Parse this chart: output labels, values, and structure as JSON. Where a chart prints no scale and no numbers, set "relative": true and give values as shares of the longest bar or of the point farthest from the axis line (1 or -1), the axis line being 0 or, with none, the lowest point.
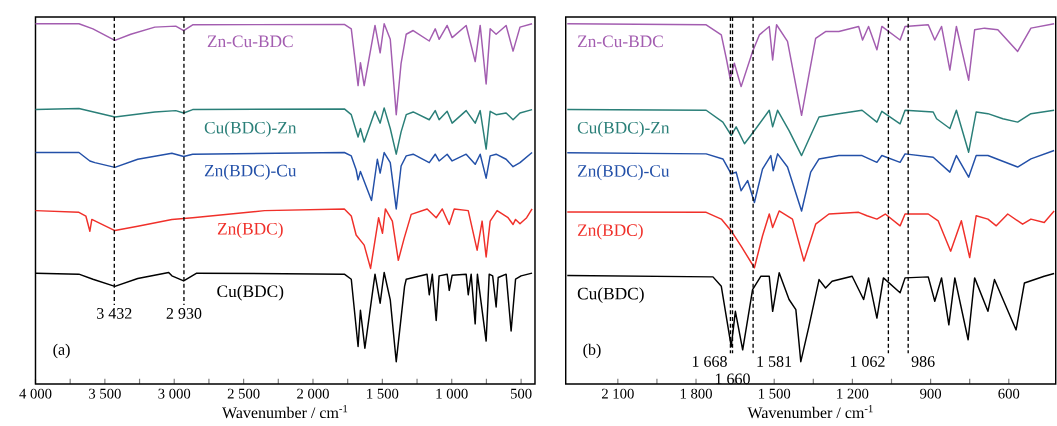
{
  "chart_data": [
    {
      "type": "line",
      "relative": true,
      "xlabel": "Wavenumber / cm$^{-1}$",
      "xlim": [
        4000,
        400
      ],
      "xticks": [
        {
          "value": 4000,
          "label": "4 000"
        },
        {
          "value": 3500,
          "label": "3 500"
        },
        {
          "value": 3000,
          "label": "3 000"
        },
        {
          "value": 2500,
          "label": "2 500"
        },
        {
          "value": 2000,
          "label": "2 000"
        },
        {
          "value": 1500,
          "label": "1 500"
        },
        {
          "value": 1000,
          "label": "1 000"
        },
        {
          "value": 500,
          "label": "500"
        }
      ],
      "series": [
        {
          "name": "Zn-Cu-BDC",
          "color": "#a35db0",
          "x": [
            4000,
            3687,
            3586,
            3428,
            3313,
            3140,
            2989,
            2932,
            2867,
            1774,
            1724,
            1675,
            1658,
            1631,
            1553,
            1516,
            1487,
            1443,
            1400,
            1365,
            1328,
            1278,
            1162,
            1119,
            1091,
            1033,
            997,
            896,
            831,
            795,
            752,
            723,
            680,
            608,
            558,
            508,
            421
          ],
          "values": [
            1.0,
            1.0,
            0.985,
            0.951,
            0.969,
            0.99,
            0.993,
            0.98,
            0.997,
            0.998,
            0.985,
            0.817,
            0.885,
            0.817,
            0.995,
            0.914,
            1.0,
            0.954,
            0.731,
            0.883,
            0.969,
            0.98,
            0.949,
            0.985,
            0.954,
            0.995,
            0.959,
            0.995,
            0.888,
            0.995,
            0.822,
            0.985,
            0.969,
            0.995,
            0.919,
            0.99,
            1.0
          ]
        },
        {
          "name": "Cu(BDC)-Zn",
          "color": "#2a7f78",
          "x": [
            4000,
            3687,
            3428,
            3140,
            2989,
            2932,
            2867,
            1774,
            1724,
            1675,
            1658,
            1631,
            1553,
            1516,
            1487,
            1443,
            1400,
            1365,
            1328,
            1278,
            1162,
            1119,
            1091,
            1033,
            997,
            896,
            831,
            795,
            752,
            723,
            680,
            608,
            558,
            508,
            421
          ],
          "values": [
            0.746,
            0.749,
            0.724,
            0.739,
            0.743,
            0.736,
            0.746,
            0.748,
            0.731,
            0.665,
            0.69,
            0.65,
            0.741,
            0.706,
            0.751,
            0.69,
            0.614,
            0.68,
            0.731,
            0.739,
            0.716,
            0.743,
            0.716,
            0.741,
            0.706,
            0.743,
            0.706,
            0.743,
            0.629,
            0.741,
            0.731,
            0.736,
            0.716,
            0.736,
            0.746
          ]
        },
        {
          "name": "Zn(BDC)-Cu",
          "color": "#2350a8",
          "x": [
            4000,
            3687,
            3608,
            3572,
            3428,
            3263,
            3017,
            2932,
            2867,
            1774,
            1724,
            1689,
            1675,
            1658,
            1578,
            1536,
            1516,
            1487,
            1443,
            1400,
            1365,
            1328,
            1278,
            1162,
            1119,
            1091,
            1033,
            997,
            896,
            831,
            795,
            752,
            723,
            680,
            608,
            558,
            508,
            421
          ],
          "values": [
            0.619,
            0.619,
            0.594,
            0.589,
            0.575,
            0.599,
            0.617,
            0.607,
            0.614,
            0.619,
            0.609,
            0.568,
            0.538,
            0.563,
            0.477,
            0.599,
            0.558,
            0.619,
            0.589,
            0.452,
            0.579,
            0.609,
            0.614,
            0.589,
            0.614,
            0.594,
            0.614,
            0.594,
            0.614,
            0.584,
            0.614,
            0.543,
            0.609,
            0.614,
            0.599,
            0.577,
            0.589,
            0.619
          ]
        },
        {
          "name": "Zn(BDC)",
          "color": "#f0302a",
          "x": [
            4000,
            3687,
            3637,
            3608,
            3594,
            3428,
            3263,
            3017,
            2867,
            2349,
            1774,
            1724,
            1689,
            1631,
            1585,
            1527,
            1499,
            1478,
            1428,
            1385,
            1343,
            1292,
            1177,
            1112,
            1068,
            1018,
            982,
            881,
            817,
            781,
            752,
            723,
            673,
            594,
            558,
            540,
            508,
            460,
            421
          ],
          "values": [
            0.447,
            0.442,
            0.431,
            0.386,
            0.421,
            0.388,
            0.401,
            0.421,
            0.426,
            0.447,
            0.452,
            0.431,
            0.375,
            0.345,
            0.276,
            0.426,
            0.38,
            0.452,
            0.416,
            0.3,
            0.365,
            0.436,
            0.452,
            0.426,
            0.452,
            0.406,
            0.452,
            0.447,
            0.33,
            0.416,
            0.31,
            0.416,
            0.447,
            0.426,
            0.406,
            0.421,
            0.408,
            0.426,
            0.452
          ]
        },
        {
          "name": "Cu(BDC)",
          "color": "#000000",
          "x": [
            4000,
            3687,
            3586,
            3428,
            3263,
            3040,
            3017,
            2932,
            2838,
            1774,
            1724,
            1675,
            1658,
            1626,
            1553,
            1516,
            1487,
            1443,
            1400,
            1340,
            1328,
            1278,
            1178,
            1162,
            1140,
            1112,
            1091,
            1033,
            1018,
            997,
            896,
            881,
            860,
            831,
            815,
            752,
            730,
            705,
            680,
            665,
            608,
            572,
            540,
            500,
            421
          ],
          "values": [
            0.262,
            0.259,
            0.244,
            0.223,
            0.246,
            0.264,
            0.254,
            0.239,
            0.262,
            0.259,
            0.244,
            0.045,
            0.152,
            0.04,
            0.259,
            0.173,
            0.264,
            0.183,
            0,
            0.223,
            0.244,
            0.249,
            0.259,
            0.198,
            0.259,
            0.122,
            0.254,
            0.259,
            0.211,
            0.256,
            0.259,
            0.198,
            0.259,
            0.112,
            0.259,
            0.061,
            0.259,
            0.254,
            0.162,
            0.249,
            0.259,
            0.091,
            0.244,
            0.254,
            0.262
          ]
        }
      ],
      "ref_lines": [
        {
          "axis": "x",
          "value": 3432,
          "label": "3 432",
          "line_style": "dashed"
        },
        {
          "axis": "x",
          "value": 2930,
          "label": "2 930",
          "line_style": "dashed"
        }
      ],
      "annotations": [
        "(a)"
      ]
    },
    {
      "type": "line",
      "relative": true,
      "xlabel": "Wavenumber / cm$^{-1}$",
      "xlim": [
        2300,
        420
      ],
      "xticks": [
        {
          "value": 2100,
          "label": "2 100"
        },
        {
          "value": 1800,
          "label": "1 800"
        },
        {
          "value": 1500,
          "label": "1 500"
        },
        {
          "value": 1200,
          "label": "1 200"
        },
        {
          "value": 900,
          "label": "900"
        },
        {
          "value": 600,
          "label": "600"
        }
      ],
      "series": [
        {
          "name": "Zn-Cu-BDC",
          "color": "#a35db0",
          "x": [
            2294,
            1761,
            1703,
            1684,
            1669,
            1653,
            1627,
            1583,
            1557,
            1519,
            1506,
            1491,
            1449,
            1395,
            1367,
            1341,
            1303,
            1252,
            1176,
            1161,
            1138,
            1106,
            1087,
            1017,
            998,
            909,
            884,
            858,
            826,
            801,
            754,
            731,
            693,
            642,
            566,
            515,
            426
          ],
          "values": [
            1.0,
            0.997,
            0.967,
            0.898,
            0.838,
            0.883,
            0.814,
            0.918,
            0.967,
            0.992,
            0.893,
            0.997,
            0.948,
            0.729,
            0.848,
            0.957,
            0.977,
            0.977,
            0.992,
            0.952,
            0.992,
            0.923,
            0.992,
            0.952,
            0.992,
            0.997,
            0.952,
            0.992,
            0.863,
            0.992,
            0.833,
            0.982,
            0.987,
            0.982,
            0.918,
            0.987,
            1.0
          ]
        },
        {
          "name": "Cu(BDC)-Zn",
          "color": "#2a7f78",
          "x": [
            2294,
            1761,
            1697,
            1665,
            1646,
            1614,
            1570,
            1519,
            1506,
            1487,
            1443,
            1395,
            1360,
            1328,
            1252,
            1163,
            1106,
            1087,
            1017,
            998,
            890,
            877,
            826,
            801,
            754,
            725,
            680,
            623,
            566,
            515,
            426
          ],
          "values": [
            0.746,
            0.744,
            0.709,
            0.67,
            0.695,
            0.645,
            0.69,
            0.744,
            0.695,
            0.744,
            0.684,
            0.61,
            0.67,
            0.724,
            0.734,
            0.744,
            0.709,
            0.741,
            0.704,
            0.744,
            0.739,
            0.719,
            0.69,
            0.744,
            0.62,
            0.739,
            0.734,
            0.719,
            0.709,
            0.734,
            0.744
          ]
        },
        {
          "name": "Zn(BDC)-Cu",
          "color": "#2350a8",
          "x": [
            2294,
            1761,
            1697,
            1665,
            1646,
            1627,
            1602,
            1576,
            1545,
            1513,
            1504,
            1487,
            1449,
            1395,
            1360,
            1328,
            1252,
            1163,
            1106,
            1087,
            1017,
            998,
            890,
            826,
            801,
            754,
            725,
            680,
            566,
            515,
            426
          ],
          "values": [
            0.618,
            0.615,
            0.6,
            0.556,
            0.561,
            0.506,
            0.536,
            0.471,
            0.57,
            0.61,
            0.565,
            0.615,
            0.576,
            0.446,
            0.561,
            0.6,
            0.61,
            0.61,
            0.59,
            0.61,
            0.59,
            0.615,
            0.605,
            0.561,
            0.61,
            0.546,
            0.61,
            0.61,
            0.576,
            0.6,
            0.625
          ]
        },
        {
          "name": "Zn(BDC)",
          "color": "#f0302a",
          "x": [
            2294,
            1761,
            1703,
            1665,
            1627,
            1576,
            1545,
            1519,
            1506,
            1481,
            1430,
            1386,
            1341,
            1290,
            1176,
            1144,
            1106,
            1074,
            1017,
            998,
            909,
            871,
            823,
            782,
            750,
            725,
            680,
            648,
            604,
            547,
            515,
            464,
            426
          ],
          "values": [
            0.443,
            0.442,
            0.422,
            0.387,
            0.342,
            0.278,
            0.372,
            0.437,
            0.397,
            0.446,
            0.422,
            0.298,
            0.407,
            0.437,
            0.442,
            0.432,
            0.422,
            0.437,
            0.402,
            0.437,
            0.437,
            0.417,
            0.327,
            0.417,
            0.308,
            0.432,
            0.422,
            0.402,
            0.437,
            0.407,
            0.422,
            0.412,
            0.446
          ]
        },
        {
          "name": "Cu(BDC)",
          "color": "#000000",
          "x": [
            2294,
            1735,
            1703,
            1665,
            1649,
            1621,
            1583,
            1551,
            1519,
            1506,
            1481,
            1443,
            1417,
            1398,
            1367,
            1328,
            1303,
            1278,
            1201,
            1157,
            1138,
            1106,
            1081,
            1017,
            998,
            909,
            884,
            858,
            830,
            807,
            756,
            731,
            680,
            655,
            572,
            540,
            464,
            426
          ],
          "values": [
            0.255,
            0.251,
            0.223,
            0.045,
            0.149,
            0.035,
            0.213,
            0.253,
            0.253,
            0.149,
            0.263,
            0.184,
            0.154,
            0,
            0.104,
            0.243,
            0.218,
            0.238,
            0.253,
            0.184,
            0.248,
            0.129,
            0.248,
            0.204,
            0.248,
            0.251,
            0.179,
            0.248,
            0.109,
            0.248,
            0.065,
            0.248,
            0.149,
            0.243,
            0.094,
            0.233,
            0.253,
            0.261
          ]
        }
      ],
      "ref_lines": [
        {
          "axis": "x",
          "value": 1668,
          "label": "1 668",
          "line_style": "dashed"
        },
        {
          "axis": "x",
          "value": 1660,
          "label": "1 660",
          "line_style": "dashed"
        },
        {
          "axis": "x",
          "value": 1581,
          "label": "1 581",
          "line_style": "dashed"
        },
        {
          "axis": "x",
          "value": 1062,
          "label": "1 062",
          "line_style": "dashed"
        },
        {
          "axis": "x",
          "value": 986,
          "label": "986",
          "line_style": "dashed"
        }
      ],
      "annotations": [
        "(b)"
      ]
    }
  ]
}
